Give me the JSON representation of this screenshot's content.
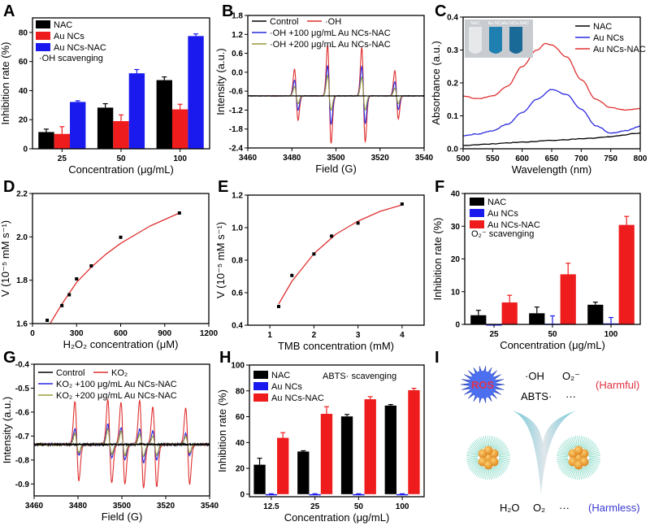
{
  "colors": {
    "black": "#000000",
    "red": "#ee1c1c",
    "blue": "#1a1aee",
    "olive": "#9a9a3a",
    "red_line": "#e03030",
    "blue_line": "#2a2ae0"
  },
  "chart_data": [
    {
      "panel": "A",
      "type": "bar",
      "categories": [
        "25",
        "50",
        "100"
      ],
      "xlabel": "Concentration (μg/mL)",
      "ylabel": "Inhibition rate (%)",
      "ylim": [
        0,
        90
      ],
      "yticks": [
        0,
        20,
        40,
        60,
        80
      ],
      "annotation": "·OH scavenging",
      "series": [
        {
          "name": "NAC",
          "color": "#000000",
          "values": [
            11.5,
            28.3,
            47.2
          ],
          "errors": [
            2.0,
            2.7,
            2.2
          ]
        },
        {
          "name": "Au NCs",
          "color": "#ee1c1c",
          "values": [
            10.2,
            19.0,
            27.1
          ],
          "errors": [
            5.0,
            4.3,
            3.5
          ]
        },
        {
          "name": "Au NCs-NAC",
          "color": "#1a1aee",
          "values": [
            32.2,
            51.9,
            77.5
          ],
          "errors": [
            0.8,
            2.6,
            1.5
          ]
        }
      ]
    },
    {
      "panel": "B",
      "type": "epr",
      "xlabel": "Field (G)",
      "ylabel": "Intensity (a.u.)",
      "xlim": [
        3460,
        3540
      ],
      "xticks": [
        3460,
        3480,
        3500,
        3520,
        3540
      ],
      "ylim": [
        -2.4,
        1.8
      ],
      "yticks": [
        -2.4,
        -1.8,
        -1.2,
        -0.6,
        0.0,
        0.6,
        1.2,
        1.8
      ],
      "baseline": -0.75,
      "peak_fields": [
        3482,
        3497,
        3512.5,
        3527.5
      ],
      "series": [
        {
          "name": "·OH",
          "color": "#e03030",
          "max": [
            0.1,
            0.85,
            0.78,
            0.05
          ],
          "min": [
            -1.52,
            -2.25,
            -2.2,
            -1.48
          ]
        },
        {
          "name": "·OH +100 μg/mL Au NCs-NAC",
          "color": "#2a2ae0",
          "max": [
            -0.25,
            0.2,
            0.18,
            -0.3
          ],
          "min": [
            -1.2,
            -1.65,
            -1.62,
            -1.18
          ]
        },
        {
          "name": "·OH +200 μg/mL Au NCs-NAC",
          "color": "#9a9a3a",
          "max": [
            -0.45,
            -0.1,
            -0.15,
            -0.5
          ],
          "min": [
            -1.0,
            -1.2,
            -1.2,
            -1.0
          ]
        },
        {
          "name": "Control",
          "color": "#000000",
          "max": [
            -0.75,
            -0.75,
            -0.75,
            -0.75
          ],
          "min": [
            -0.75,
            -0.75,
            -0.75,
            -0.75
          ]
        }
      ]
    },
    {
      "panel": "C",
      "type": "line",
      "xlabel": "Wavelength (nm)",
      "ylabel": "Absorbance (a.u.)",
      "xlim": [
        500,
        800
      ],
      "xticks": [
        500,
        550,
        600,
        650,
        700,
        750,
        800
      ],
      "ylim": [
        0,
        0.4
      ],
      "yticks": [
        "0.0",
        "0.1",
        "0.2",
        "0.3",
        "0.4"
      ],
      "inset_labels": [
        "NAC",
        "Au NCs",
        "Au NCs-NAC"
      ],
      "series": [
        {
          "name": "NAC",
          "color": "#000000",
          "x": [
            500,
            550,
            600,
            650,
            700,
            750,
            800
          ],
          "y": [
            0.01,
            0.015,
            0.02,
            0.025,
            0.03,
            0.037,
            0.048
          ]
        },
        {
          "name": "Au NCs",
          "color": "#2a2ae0",
          "x": [
            500,
            525,
            550,
            575,
            600,
            625,
            650,
            675,
            700,
            725,
            750,
            775,
            800
          ],
          "y": [
            0.04,
            0.045,
            0.055,
            0.075,
            0.11,
            0.15,
            0.18,
            0.165,
            0.12,
            0.07,
            0.047,
            0.055,
            0.068
          ]
        },
        {
          "name": "Au NCs-NAC",
          "color": "#e03030",
          "x": [
            500,
            525,
            550,
            575,
            600,
            625,
            640,
            650,
            675,
            700,
            725,
            750,
            775,
            800
          ],
          "y": [
            0.16,
            0.152,
            0.16,
            0.19,
            0.25,
            0.3,
            0.32,
            0.315,
            0.28,
            0.21,
            0.15,
            0.125,
            0.118,
            0.122
          ]
        }
      ]
    },
    {
      "panel": "D",
      "type": "scatter",
      "xlabel": "H₂O₂ concentration (μM)",
      "ylabel": "V (10⁻⁵ mM s⁻¹)",
      "xlim": [
        0,
        1200
      ],
      "xticks": [
        0,
        300,
        600,
        900,
        1200
      ],
      "ylim": [
        1.6,
        2.2
      ],
      "yticks": [
        1.6,
        1.8,
        2.0,
        2.2
      ],
      "points": {
        "x": [
          100,
          200,
          250,
          300,
          400,
          600,
          1000
        ],
        "y": [
          1.615,
          1.683,
          1.733,
          1.806,
          1.866,
          1.998,
          2.11
        ]
      },
      "fit": {
        "color": "#e03030",
        "x": [
          120,
          200,
          300,
          400,
          500,
          600,
          800,
          1000
        ],
        "y": [
          1.6,
          1.69,
          1.79,
          1.86,
          1.92,
          1.97,
          2.05,
          2.11
        ]
      }
    },
    {
      "panel": "E",
      "type": "scatter",
      "xlabel": "TMB concentration (mM)",
      "ylabel": "V (10⁻⁵ mM s⁻¹)",
      "xlim": [
        0.5,
        4.5
      ],
      "xticks": [
        1,
        2,
        3,
        4
      ],
      "ylim": [
        0.4,
        1.2
      ],
      "yticks": [
        0.4,
        0.6,
        0.8,
        1.0,
        1.2
      ],
      "points": {
        "x": [
          1.2,
          1.5,
          2.0,
          2.4,
          3.0,
          4.0
        ],
        "y": [
          0.515,
          0.706,
          0.838,
          0.948,
          1.028,
          1.145
        ]
      },
      "fit": {
        "color": "#e03030",
        "x": [
          1.2,
          1.5,
          2.0,
          2.5,
          3.0,
          3.5,
          4.0
        ],
        "y": [
          0.53,
          0.67,
          0.84,
          0.96,
          1.04,
          1.1,
          1.14
        ]
      }
    },
    {
      "panel": "F",
      "type": "bar",
      "categories": [
        "25",
        "50",
        "100"
      ],
      "xlabel": "Concentration (μg/mL)",
      "ylabel": "Inhibition rate (%)",
      "ylim": [
        0,
        40
      ],
      "yticks": [
        0,
        10,
        20,
        30,
        40
      ],
      "annotation": "O₂⁻ scavenging",
      "series": [
        {
          "name": "NAC",
          "color": "#000000",
          "values": [
            2.8,
            3.4,
            6.0
          ],
          "errors": [
            1.5,
            1.9,
            0.8
          ]
        },
        {
          "name": "Au NCs",
          "color": "#1a1aee",
          "values": [
            0,
            0.2,
            0.3
          ],
          "errors": [
            0,
            2.4,
            1.8
          ]
        },
        {
          "name": "Au NCs-NAC",
          "color": "#ee1c1c",
          "values": [
            6.7,
            15.3,
            30.4
          ],
          "errors": [
            2.2,
            3.4,
            2.6
          ]
        }
      ]
    },
    {
      "panel": "G",
      "type": "epr",
      "xlabel": "Field (G)",
      "ylabel": "Intensity (a.u.)",
      "xlim": [
        3460,
        3540
      ],
      "xticks": [
        3460,
        3480,
        3500,
        3520,
        3540
      ],
      "ylim": [
        -0.95,
        -0.4
      ],
      "yticks": [
        -0.9,
        -0.8,
        -0.7,
        -0.6,
        -0.5,
        -0.4
      ],
      "baseline": -0.735,
      "peak_fields": [
        3479.5,
        3494.5,
        3500.5,
        3509,
        3515,
        3530
      ],
      "series": [
        {
          "name": "KO₂",
          "color": "#e03030",
          "max": [
            -0.555,
            -0.548,
            -0.56,
            -0.552,
            -0.578,
            -0.585
          ],
          "min": [
            -0.885,
            -0.895,
            -0.9,
            -0.915,
            -0.91,
            -0.9
          ]
        },
        {
          "name": "KO₂ +100 μg/mL Au NCs-NAC",
          "color": "#2a2ae0",
          "max": [
            -0.67,
            -0.65,
            -0.665,
            -0.67,
            -0.68,
            -0.69
          ],
          "min": [
            -0.78,
            -0.79,
            -0.8,
            -0.81,
            -0.8,
            -0.78
          ]
        },
        {
          "name": "KO₂ +200 μg/mL Au NCs-NAC",
          "color": "#9a9a3a",
          "max": [
            -0.69,
            -0.67,
            -0.68,
            -0.69,
            -0.7,
            -0.7
          ],
          "min": [
            -0.77,
            -0.775,
            -0.78,
            -0.785,
            -0.78,
            -0.77
          ]
        },
        {
          "name": "Control",
          "color": "#000000",
          "max": [
            -0.735,
            -0.735,
            -0.735,
            -0.735,
            -0.735,
            -0.735
          ],
          "min": [
            -0.735,
            -0.735,
            -0.735,
            -0.735,
            -0.735,
            -0.735
          ]
        }
      ]
    },
    {
      "panel": "H",
      "type": "bar",
      "categories": [
        "12.5",
        "25",
        "50",
        "100"
      ],
      "xlabel": "Concentration (μg/mL)",
      "ylabel": "Inhibition rate (%)",
      "ylim": [
        -2,
        100
      ],
      "yticks": [
        0,
        20,
        40,
        60,
        80,
        100
      ],
      "annotation": "ABTS· scavenging",
      "series": [
        {
          "name": "NAC",
          "color": "#000000",
          "values": [
            22.8,
            33.0,
            60.2,
            68.6
          ],
          "errors": [
            5.0,
            0.6,
            1.5,
            0.8
          ]
        },
        {
          "name": "Au NCs",
          "color": "#1a1aee",
          "values": [
            -0.5,
            -0.5,
            -0.5,
            -0.5
          ],
          "errors": [
            0.3,
            0.3,
            0.3,
            0.3
          ]
        },
        {
          "name": "Au NCs-NAC",
          "color": "#ee1c1c",
          "values": [
            43.6,
            62.2,
            73.5,
            80.5
          ],
          "errors": [
            4.0,
            5.5,
            2.0,
            1.5
          ]
        }
      ]
    }
  ],
  "diagram_I": {
    "ros_label": "ROS",
    "harmful_species": [
      "·OH",
      "O₂⁻",
      "ABTS·",
      "···"
    ],
    "harmful_label": "(Harmful)",
    "harmless_species": [
      "H₂O",
      "O₂",
      "···"
    ],
    "harmless_label": "(Harmless)"
  },
  "panel_letters": [
    "A",
    "B",
    "C",
    "D",
    "E",
    "F",
    "G",
    "H",
    "I"
  ]
}
